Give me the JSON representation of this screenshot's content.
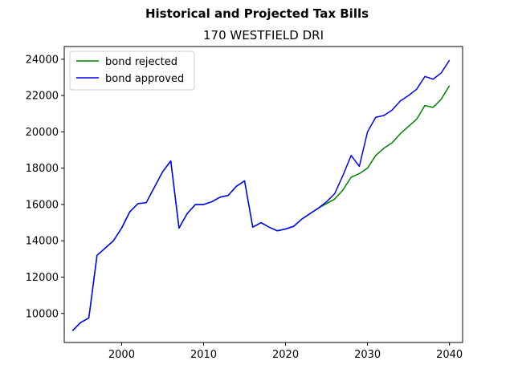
{
  "chart_data": {
    "type": "line",
    "suptitle": "Historical and Projected Tax Bills",
    "title": "170 WESTFIELD DRI",
    "xlabel": "",
    "ylabel": "",
    "xlim": [
      1993,
      2041.6
    ],
    "ylim": [
      8400,
      24700
    ],
    "xticks": [
      2000,
      2010,
      2020,
      2030,
      2040
    ],
    "yticks": [
      10000,
      12000,
      14000,
      16000,
      18000,
      20000,
      22000,
      24000
    ],
    "grid": false,
    "legend_location": "upper-left",
    "series": [
      {
        "name": "bond rejected",
        "color": "#008000",
        "x": [
          1994,
          1995,
          1996,
          1997,
          1998,
          1999,
          2000,
          2001,
          2002,
          2003,
          2004,
          2005,
          2006,
          2007,
          2008,
          2009,
          2010,
          2011,
          2012,
          2013,
          2014,
          2015,
          2016,
          2017,
          2018,
          2019,
          2020,
          2021,
          2022,
          2023,
          2024,
          2025,
          2026,
          2027,
          2028,
          2029,
          2030,
          2031,
          2032,
          2033,
          2034,
          2035,
          2036,
          2037,
          2038,
          2039,
          2040
        ],
        "values": [
          9050,
          9500,
          9750,
          13200,
          13600,
          14000,
          14700,
          15600,
          16050,
          16100,
          16950,
          17800,
          18400,
          14700,
          15500,
          16000,
          16000,
          16150,
          16400,
          16500,
          17000,
          17300,
          14750,
          15000,
          14750,
          14550,
          14650,
          14800,
          15200,
          15500,
          15800,
          16050,
          16300,
          16800,
          17500,
          17700,
          18000,
          18700,
          19100,
          19400,
          19900,
          20300,
          20700,
          21450,
          21350,
          21800,
          22550
        ]
      },
      {
        "name": "bond approved",
        "color": "#0000ff",
        "x": [
          1994,
          1995,
          1996,
          1997,
          1998,
          1999,
          2000,
          2001,
          2002,
          2003,
          2004,
          2005,
          2006,
          2007,
          2008,
          2009,
          2010,
          2011,
          2012,
          2013,
          2014,
          2015,
          2016,
          2017,
          2018,
          2019,
          2020,
          2021,
          2022,
          2023,
          2024,
          2025,
          2026,
          2027,
          2028,
          2029,
          2030,
          2031,
          2032,
          2033,
          2034,
          2035,
          2036,
          2037,
          2038,
          2039,
          2040
        ],
        "values": [
          9050,
          9500,
          9750,
          13200,
          13600,
          14000,
          14700,
          15600,
          16050,
          16100,
          16950,
          17800,
          18400,
          14700,
          15500,
          16000,
          16000,
          16150,
          16400,
          16500,
          17000,
          17300,
          14750,
          15000,
          14750,
          14550,
          14650,
          14800,
          15200,
          15500,
          15800,
          16150,
          16600,
          17600,
          18700,
          18100,
          20000,
          20800,
          20900,
          21200,
          21700,
          22000,
          22350,
          23050,
          22900,
          23250,
          23950
        ]
      }
    ]
  }
}
